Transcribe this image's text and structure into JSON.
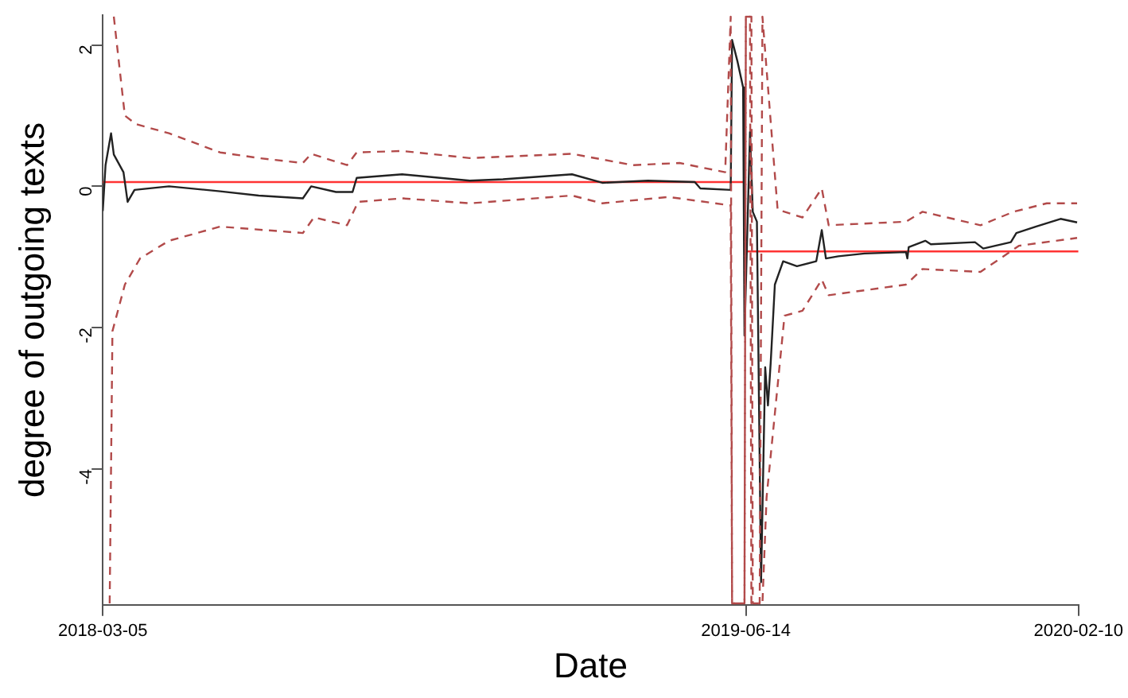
{
  "chart_data": {
    "type": "line",
    "xlabel": "Date",
    "ylabel": "degree of outgoing texts",
    "xlim": [
      "2018-03-05",
      "2020-02-10"
    ],
    "xticks": [
      "2018-03-05",
      "2019-06-14",
      "2020-02-10"
    ],
    "ylim": [
      -5.92,
      2.42
    ],
    "yticks": [
      -4,
      -2,
      0,
      2
    ],
    "grid": false,
    "legend": false,
    "marker": "none",
    "series": [
      {
        "color": "#b24a4a",
        "line_style": "dashed",
        "x": [
          "2018-03-13",
          "2018-03-21",
          "2018-03-29",
          "2018-04-22",
          "2018-05-29",
          "2018-06-26",
          "2018-07-28",
          "2018-08-03",
          "2018-08-29",
          "2018-09-05",
          "2018-10-08",
          "2018-11-26",
          "2019-02-08",
          "2019-03-24",
          "2019-04-27",
          "2019-05-30",
          "2019-06-03",
          "2019-06-04",
          "2019-06-13",
          "2019-06-14",
          "2019-06-17",
          "2019-06-18",
          "2019-06-24",
          "2019-06-26",
          "2019-07-07",
          "2019-07-25",
          "2019-08-08",
          "2019-08-13",
          "2019-10-08",
          "2019-10-20",
          "2019-12-01",
          "2019-12-25",
          "2020-01-18",
          "2020-02-09"
        ],
        "values": [
          2.4,
          1.0,
          0.88,
          0.75,
          0.48,
          0.4,
          0.33,
          0.46,
          0.3,
          0.48,
          0.5,
          0.4,
          0.46,
          0.3,
          0.33,
          0.2,
          2.4,
          -5.9,
          -5.9,
          2.4,
          2.4,
          -5.9,
          -5.9,
          2.4,
          -0.33,
          -0.44,
          -0.03,
          -0.55,
          -0.5,
          -0.36,
          -0.55,
          -0.36,
          -0.24,
          -0.24
        ]
      },
      {
        "color": "#b24a4a",
        "line_style": "dashed",
        "x": [
          "2018-03-10",
          "2018-03-12",
          "2018-03-21",
          "2018-04-01",
          "2018-04-22",
          "2018-05-29",
          "2018-07-28",
          "2018-08-05",
          "2018-08-29",
          "2018-09-06",
          "2018-10-08",
          "2018-11-26",
          "2019-02-08",
          "2019-03-02",
          "2019-04-19",
          "2019-06-03",
          "2019-06-04",
          "2019-06-13",
          "2019-06-14",
          "2019-06-18",
          "2019-06-19",
          "2019-06-26",
          "2019-06-29",
          "2019-07-12",
          "2019-07-25",
          "2019-08-08",
          "2019-08-13",
          "2019-10-08",
          "2019-10-20",
          "2019-12-01",
          "2019-12-29",
          "2020-02-09"
        ],
        "values": [
          -5.9,
          -2.05,
          -1.39,
          -1.02,
          -0.77,
          -0.57,
          -0.66,
          -0.44,
          -0.55,
          -0.22,
          -0.17,
          -0.24,
          -0.13,
          -0.24,
          -0.15,
          -0.27,
          -5.9,
          -5.9,
          2.4,
          2.4,
          -5.9,
          -5.9,
          -4.4,
          -1.83,
          -1.76,
          -1.32,
          -1.54,
          -1.39,
          -1.17,
          -1.21,
          -0.84,
          -0.73
        ]
      },
      {
        "color": "#222222",
        "line_style": "solid",
        "x": [
          "2018-03-05",
          "2018-03-07",
          "2018-03-11",
          "2018-03-13",
          "2018-03-20",
          "2018-03-23",
          "2018-03-28",
          "2018-04-22",
          "2018-05-29",
          "2018-06-26",
          "2018-07-28",
          "2018-08-03",
          "2018-08-21",
          "2018-09-02",
          "2018-09-05",
          "2018-10-08",
          "2018-11-26",
          "2018-12-20",
          "2019-02-08",
          "2019-03-02",
          "2019-04-04",
          "2019-05-08",
          "2019-05-12",
          "2019-06-03",
          "2019-06-04",
          "2019-06-08",
          "2019-06-12",
          "2019-06-13",
          "2019-06-17",
          "2019-06-19",
          "2019-06-22",
          "2019-06-25",
          "2019-06-28",
          "2019-06-30",
          "2019-07-02",
          "2019-07-05",
          "2019-07-11",
          "2019-07-21",
          "2019-08-04",
          "2019-08-08",
          "2019-08-11",
          "2019-08-20",
          "2019-09-08",
          "2019-10-08",
          "2019-10-09",
          "2019-10-10",
          "2019-10-22",
          "2019-10-26",
          "2019-11-27",
          "2019-12-03",
          "2019-12-23",
          "2019-12-27",
          "2020-01-10",
          "2020-01-28",
          "2020-02-09"
        ],
        "values": [
          -0.35,
          0.3,
          0.75,
          0.45,
          0.2,
          -0.22,
          -0.05,
          0.0,
          -0.07,
          -0.13,
          -0.17,
          0.0,
          -0.08,
          -0.08,
          0.12,
          0.17,
          0.08,
          0.1,
          0.17,
          0.05,
          0.08,
          0.06,
          -0.03,
          -0.05,
          2.07,
          1.76,
          1.4,
          -2.11,
          0.77,
          -0.36,
          -0.5,
          -5.6,
          -2.56,
          -3.1,
          -2.49,
          -1.39,
          -1.06,
          -1.13,
          -1.06,
          -0.62,
          -1.02,
          -0.99,
          -0.95,
          -0.93,
          -1.02,
          -0.86,
          -0.77,
          -0.82,
          -0.79,
          -0.88,
          -0.79,
          -0.66,
          -0.57,
          -0.46,
          -0.51
        ]
      },
      {
        "color": "#ff3333",
        "line_style": "solid",
        "x": [
          "2018-03-05",
          "2019-06-14"
        ],
        "values": [
          0.06,
          0.06
        ]
      },
      {
        "color": "#ff3333",
        "line_style": "solid",
        "x": [
          "2019-06-14",
          "2020-02-10"
        ],
        "values": [
          -0.92,
          -0.92
        ]
      }
    ]
  }
}
